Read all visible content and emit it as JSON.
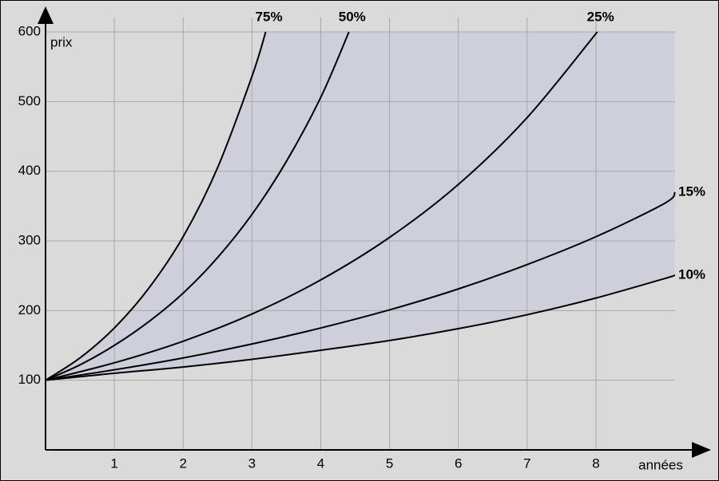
{
  "chart_data": {
    "type": "line",
    "x_label": "années",
    "y_label": "prix",
    "xlim": [
      0,
      9.15
    ],
    "ylim": [
      0,
      600
    ],
    "xticks": [
      1,
      2,
      3,
      4,
      5,
      6,
      7,
      8
    ],
    "yticks": [
      100,
      200,
      300,
      400,
      500,
      600
    ],
    "grid": true,
    "area": {
      "between": [
        "75%",
        "10%"
      ],
      "color": "#cfcfdb"
    },
    "series": [
      {
        "name": "75%",
        "color": "#000000",
        "x": [
          0,
          0.5,
          1,
          1.5,
          2,
          2.5,
          3,
          3.2
        ],
        "values": [
          100,
          132,
          175,
          232,
          306,
          405,
          536,
          600
        ]
      },
      {
        "name": "50%",
        "color": "#000000",
        "x": [
          0,
          0.5,
          1,
          1.5,
          2,
          2.5,
          3,
          3.5,
          4,
          4.41
        ],
        "values": [
          100,
          122,
          150,
          184,
          225,
          276,
          338,
          414,
          506,
          600
        ]
      },
      {
        "name": "25%",
        "color": "#000000",
        "x": [
          0,
          1,
          2,
          3,
          4,
          5,
          6,
          7,
          8.02
        ],
        "values": [
          100,
          125,
          156,
          195,
          244,
          305,
          381,
          477,
          600
        ]
      },
      {
        "name": "15%",
        "color": "#000000",
        "x": [
          0,
          1,
          2,
          3,
          4,
          5,
          6,
          7,
          8,
          9,
          9.15
        ],
        "values": [
          100,
          115,
          132,
          152,
          175,
          201,
          231,
          266,
          306,
          354,
          370
        ]
      },
      {
        "name": "10%",
        "color": "#000000",
        "x": [
          0,
          1,
          2,
          3,
          4,
          5,
          6,
          7,
          8,
          9,
          9.15
        ],
        "values": [
          100,
          110,
          119,
          130,
          143,
          157,
          174,
          194,
          218,
          246,
          251
        ]
      }
    ]
  }
}
